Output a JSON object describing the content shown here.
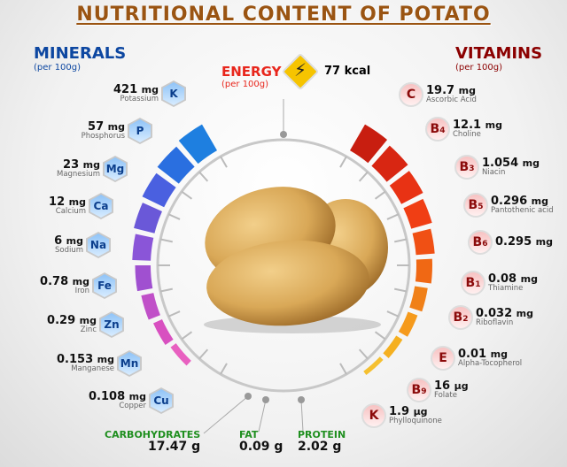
{
  "title": "NUTRITIONAL CONTENT OF POTATO",
  "minerals": {
    "heading": "MINERALS",
    "per": "(per 100g)",
    "color": "#0d47a1",
    "items": [
      {
        "symbol": "K",
        "value": "421",
        "unit": "mg",
        "name": "Potassium"
      },
      {
        "symbol": "P",
        "value": "57",
        "unit": "mg",
        "name": "Phosphorus"
      },
      {
        "symbol": "Mg",
        "value": "23",
        "unit": "mg",
        "name": "Magnesium"
      },
      {
        "symbol": "Ca",
        "value": "12",
        "unit": "mg",
        "name": "Calcium"
      },
      {
        "symbol": "Na",
        "value": "6",
        "unit": "mg",
        "name": "Sodium"
      },
      {
        "symbol": "Fe",
        "value": "0.78",
        "unit": "mg",
        "name": "Iron"
      },
      {
        "symbol": "Zn",
        "value": "0.29",
        "unit": "mg",
        "name": "Zinc"
      },
      {
        "symbol": "Mn",
        "value": "0.153",
        "unit": "mg",
        "name": "Manganese"
      },
      {
        "symbol": "Cu",
        "value": "0.108",
        "unit": "mg",
        "name": "Copper"
      }
    ]
  },
  "vitamins": {
    "heading": "VITAMINS",
    "per": "(per 100g)",
    "color": "#8b0000",
    "items": [
      {
        "symbol": "C",
        "sub": "",
        "value": "19.7",
        "unit": "mg",
        "name": "Ascorbic Acid"
      },
      {
        "symbol": "B",
        "sub": "4",
        "value": "12.1",
        "unit": "mg",
        "name": "Choline"
      },
      {
        "symbol": "B",
        "sub": "3",
        "value": "1.054",
        "unit": "mg",
        "name": "Niacin"
      },
      {
        "symbol": "B",
        "sub": "5",
        "value": "0.296",
        "unit": "mg",
        "name": "Pantothenic acid"
      },
      {
        "symbol": "B",
        "sub": "6",
        "value": "0.295",
        "unit": "mg",
        "name": ""
      },
      {
        "symbol": "B",
        "sub": "1",
        "value": "0.08",
        "unit": "mg",
        "name": "Thiamine"
      },
      {
        "symbol": "B",
        "sub": "2",
        "value": "0.032",
        "unit": "mg",
        "name": "Riboflavin"
      },
      {
        "symbol": "E",
        "sub": "",
        "value": "0.01",
        "unit": "mg",
        "name": "Alpha-Tocopherol"
      },
      {
        "symbol": "B",
        "sub": "9",
        "value": "16",
        "unit": "µg",
        "name": "Folate"
      },
      {
        "symbol": "K",
        "sub": "",
        "value": "1.9",
        "unit": "µg",
        "name": "Phylloquinone"
      }
    ]
  },
  "energy": {
    "label": "ENERGY",
    "per": "(per 100g)",
    "value": "77 kcal",
    "icon": "lightning-icon",
    "color": "#e8261c"
  },
  "macros": [
    {
      "label": "CARBOHYDRATES",
      "value": "17.47 g"
    },
    {
      "label": "FAT",
      "value": "0.09 g"
    },
    {
      "label": "PROTEIN",
      "value": "2.02 g"
    }
  ]
}
